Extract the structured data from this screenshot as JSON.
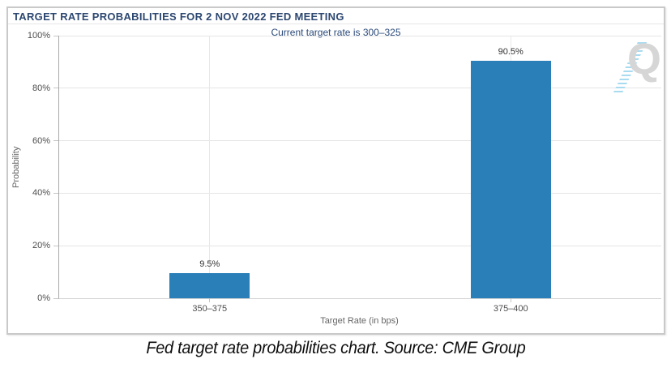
{
  "chart": {
    "title": "TARGET RATE PROBABILITIES FOR 2 NOV 2022 FED MEETING",
    "subtitle": "Current target rate is 300–325",
    "xlabel": "Target Rate (in bps)",
    "ylabel": "Probability"
  },
  "watermark": {
    "letter": "Q"
  },
  "caption": {
    "text": "Fed target rate probabilities chart. Source: CME Group"
  },
  "colors": {
    "bar": "#2b7fb8",
    "title_navy": "#2c4770",
    "subtitle_navy": "#2b4a7a",
    "gridline": "#e5e5e5",
    "axis_line": "#a9a9a9",
    "tick_label": "#4d4d4d",
    "watermark_gray": "#d6d6d6",
    "watermark_blue": "#a8dbf0"
  },
  "chart_data": {
    "type": "bar",
    "title": "TARGET RATE PROBABILITIES FOR 2 NOV 2022 FED MEETING",
    "subtitle": "Current target rate is 300–325",
    "categories": [
      "350–375",
      "375–400"
    ],
    "values": [
      9.5,
      90.5
    ],
    "value_labels": [
      "9.5%",
      "90.5%"
    ],
    "xlabel": "Target Rate (in bps)",
    "ylabel": "Probability",
    "ylim": [
      0,
      100
    ],
    "ytick_step": 20,
    "ytick_labels": [
      "0%",
      "20%",
      "40%",
      "60%",
      "80%",
      "100%"
    ],
    "grid": "horizontal gridlines at y ticks, vertical gridline at each category center",
    "legend": "none"
  }
}
